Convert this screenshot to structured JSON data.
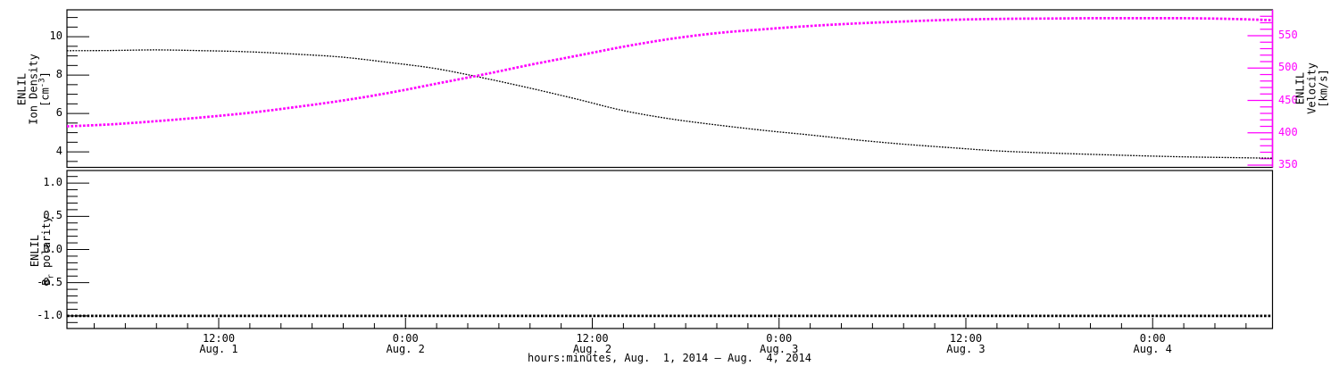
{
  "figure": {
    "background": "#ffffff",
    "frame_color": "#000000",
    "accent_magenta": "#ff00ff"
  },
  "chart_data": {
    "type": "line",
    "title": "",
    "xlabel": "hours:minutes, Aug.  1, 2014 — Aug.  4, 2014",
    "x_unit": "hours since Aug. 1, 2014 00:00",
    "x_range": [
      2.25,
      79.7
    ],
    "x_minor_step": 2,
    "grid": "off",
    "x_major_ticks": [
      {
        "t": 12,
        "time": "12:00",
        "date": "Aug. 1"
      },
      {
        "t": 24,
        "time": "0:00",
        "date": "Aug. 2"
      },
      {
        "t": 36,
        "time": "12:00",
        "date": "Aug. 2"
      },
      {
        "t": 48,
        "time": "0:00",
        "date": "Aug. 3"
      },
      {
        "t": 60,
        "time": "12:00",
        "date": "Aug. 3"
      },
      {
        "t": 72,
        "time": "0:00",
        "date": "Aug. 4"
      }
    ],
    "panels": [
      {
        "name": "density-velocity",
        "left_axis": {
          "title_lines": [
            "ENLIL",
            "Ion Density",
            {
              "pre": "[cm",
              "sup": "-3",
              "post": "]"
            }
          ],
          "range": [
            3.19,
            11.4
          ],
          "major_ticks": [
            {
              "v": 4,
              "label": "4"
            },
            {
              "v": 6,
              "label": "6"
            },
            {
              "v": 8,
              "label": "8"
            },
            {
              "v": 10,
              "label": "10"
            }
          ],
          "minor_step": 0.5,
          "color": "#000000"
        },
        "right_axis": {
          "title_lines": [
            "ENLIL",
            "Velocity",
            "[km/s]"
          ],
          "range": [
            346.6,
            590
          ],
          "major_ticks": [
            {
              "v": 350,
              "label": "350"
            },
            {
              "v": 400,
              "label": "400"
            },
            {
              "v": 450,
              "label": "450"
            },
            {
              "v": 500,
              "label": "500"
            },
            {
              "v": 550,
              "label": "550"
            }
          ],
          "minor_step": 10,
          "color": "#ff00ff"
        },
        "series": [
          {
            "name": "ion-density",
            "axis": "left",
            "color": "#000000",
            "style": "dots-thin",
            "t": [
              2.25,
              5,
              8,
              11,
              14,
              17,
              20,
              23,
              26,
              29,
              32,
              35,
              38,
              41,
              44,
              47,
              50,
              53,
              56,
              59,
              62,
              65,
              68,
              71,
              74,
              77,
              79.7
            ],
            "v": [
              9.27,
              9.28,
              9.31,
              9.27,
              9.21,
              9.09,
              8.93,
              8.65,
              8.33,
              7.85,
              7.32,
              6.75,
              6.15,
              5.72,
              5.4,
              5.12,
              4.88,
              4.62,
              4.4,
              4.22,
              4.05,
              3.95,
              3.87,
              3.8,
              3.74,
              3.7,
              3.67
            ]
          },
          {
            "name": "velocity",
            "axis": "right",
            "color": "#ff00ff",
            "style": "dots-thick",
            "t": [
              2.25,
              5,
              8,
              11,
              14,
              17,
              20,
              23,
              26,
              29,
              32,
              35,
              38,
              41,
              44,
              47,
              50,
              53,
              56,
              59,
              62,
              65,
              68,
              71,
              74,
              77,
              79.7
            ],
            "v": [
              410,
              413,
              418,
              424,
              431,
              440,
              450,
              462,
              476,
              490,
              505,
              519,
              533,
              545,
              554,
              560,
              565,
              569,
              572,
              574.5,
              576,
              576.5,
              577,
              577,
              577,
              576,
              574
            ]
          }
        ]
      },
      {
        "name": "br-polarity",
        "left_axis": {
          "title_lines": [
            "ENLIL",
            {
              "pre": "B",
              "sub": "r",
              "post": " polarity"
            }
          ],
          "range": [
            -1.19,
            1.19
          ],
          "major_ticks": [
            {
              "v": 1.0,
              "label": "1.0"
            },
            {
              "v": 0.5,
              "label": "0.5"
            },
            {
              "v": 0.0,
              "label": "0.0"
            },
            {
              "v": -0.5,
              "label": "-0.5"
            },
            {
              "v": -1.0,
              "label": "-1.0"
            }
          ],
          "minor_step": 0.1,
          "color": "#000000"
        },
        "series": [
          {
            "name": "br-polarity",
            "axis": "left",
            "color": "#000000",
            "style": "dots-thick",
            "t": [
              2.25,
              79.7
            ],
            "v": [
              -1,
              -1
            ]
          }
        ]
      }
    ]
  }
}
